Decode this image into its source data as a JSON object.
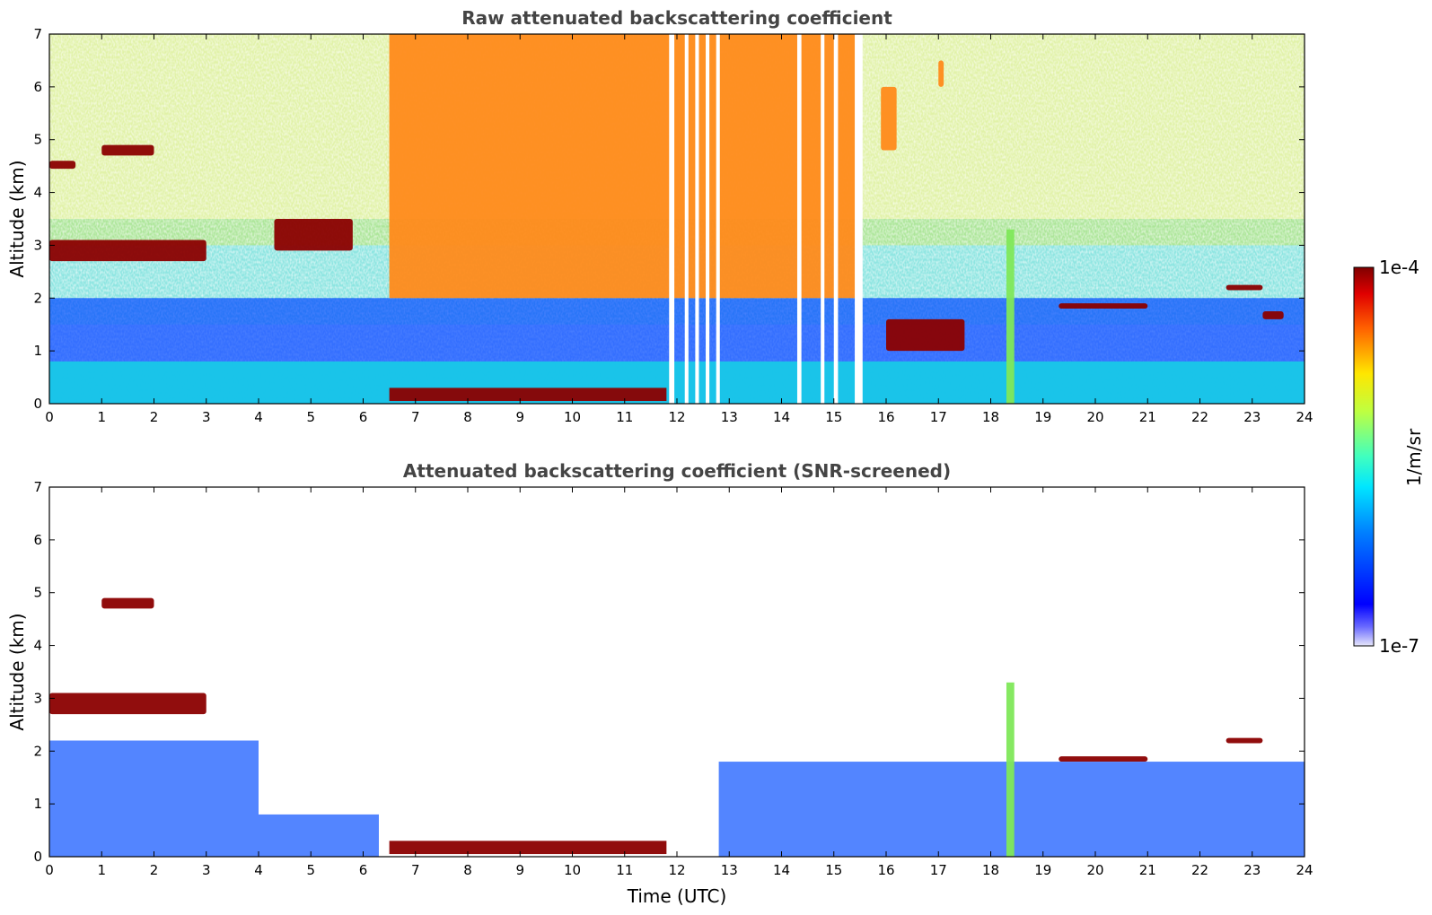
{
  "chart_data": [
    {
      "type": "heatmap",
      "title": "Raw attenuated backscattering coefficient",
      "xlabel": "",
      "ylabel": "Altitude (km)",
      "xlim": [
        0,
        24
      ],
      "ylim": [
        0,
        7
      ],
      "xticks": [
        "0",
        "1",
        "2",
        "3",
        "4",
        "5",
        "6",
        "7",
        "8",
        "9",
        "10",
        "11",
        "12",
        "13",
        "14",
        "15",
        "16",
        "17",
        "18",
        "19",
        "20",
        "21",
        "22",
        "23",
        "24"
      ],
      "yticks": [
        "0",
        "1",
        "2",
        "3",
        "4",
        "5",
        "6",
        "7"
      ],
      "data_gaps_hours": [
        [
          11.85,
          11.95
        ],
        [
          12.15,
          12.22
        ],
        [
          12.35,
          12.42
        ],
        [
          12.55,
          12.62
        ],
        [
          12.75,
          12.82
        ],
        [
          14.3,
          14.38
        ],
        [
          14.75,
          14.82
        ],
        [
          15.0,
          15.08
        ],
        [
          15.4,
          15.55
        ]
      ],
      "features": [
        {
          "name": "low noisy background",
          "t": [
            0,
            24
          ],
          "z": [
            0,
            2
          ],
          "level": "low"
        },
        {
          "name": "high noisy background",
          "t": [
            6.5,
            15.5
          ],
          "z": [
            2,
            7
          ],
          "level": "high"
        },
        {
          "name": "boundary layer",
          "t": [
            0,
            24
          ],
          "z": [
            0,
            0.8
          ],
          "level": "medium"
        },
        {
          "name": "surface layer",
          "t": [
            6.5,
            11.8
          ],
          "z": [
            0.05,
            0.3
          ],
          "level": "max"
        },
        {
          "name": "cloud",
          "t": [
            0.0,
            3.0
          ],
          "z": [
            2.7,
            3.1
          ],
          "level": "max"
        },
        {
          "name": "cloud",
          "t": [
            1.0,
            2.0
          ],
          "z": [
            4.7,
            4.9
          ],
          "level": "max"
        },
        {
          "name": "cloud",
          "t": [
            0.0,
            0.5
          ],
          "z": [
            4.45,
            4.6
          ],
          "level": "max"
        },
        {
          "name": "cloud",
          "t": [
            4.3,
            5.8
          ],
          "z": [
            2.9,
            3.5
          ],
          "level": "max"
        },
        {
          "name": "cloud",
          "t": [
            19.3,
            21.0
          ],
          "z": [
            1.8,
            1.9
          ],
          "level": "max"
        },
        {
          "name": "cloud",
          "t": [
            22.5,
            23.2
          ],
          "z": [
            2.15,
            2.25
          ],
          "level": "max"
        },
        {
          "name": "cloud",
          "t": [
            23.2,
            23.6
          ],
          "z": [
            1.6,
            1.75
          ],
          "level": "max"
        },
        {
          "name": "cloud",
          "t": [
            16.0,
            17.5
          ],
          "z": [
            1.0,
            1.6
          ],
          "level": "max"
        },
        {
          "name": "cloud",
          "t": [
            15.9,
            16.2
          ],
          "z": [
            4.8,
            6.0
          ],
          "level": "high"
        },
        {
          "name": "cloud",
          "t": [
            17.0,
            17.1
          ],
          "z": [
            6.0,
            6.5
          ],
          "level": "high"
        },
        {
          "name": "precipitation shaft",
          "t": [
            18.3,
            18.45
          ],
          "z": [
            0,
            3.3
          ],
          "level": "medium-high"
        }
      ]
    },
    {
      "type": "heatmap",
      "title": "Attenuated backscattering coefficient (SNR-screened)",
      "xlabel": "Time (UTC)",
      "ylabel": "Altitude (km)",
      "xlim": [
        0,
        24
      ],
      "ylim": [
        0,
        7
      ],
      "xticks": [
        "0",
        "1",
        "2",
        "3",
        "4",
        "5",
        "6",
        "7",
        "8",
        "9",
        "10",
        "11",
        "12",
        "13",
        "14",
        "15",
        "16",
        "17",
        "18",
        "19",
        "20",
        "21",
        "22",
        "23",
        "24"
      ],
      "yticks": [
        "0",
        "1",
        "2",
        "3",
        "4",
        "5",
        "6",
        "7"
      ],
      "features": [
        {
          "name": "aerosol layer",
          "t": [
            0,
            4.0
          ],
          "z": [
            0,
            2.2
          ],
          "level": "low"
        },
        {
          "name": "aerosol layer",
          "t": [
            4.0,
            6.3
          ],
          "z": [
            0,
            0.8
          ],
          "level": "low"
        },
        {
          "name": "surface layer",
          "t": [
            6.5,
            11.8
          ],
          "z": [
            0.05,
            0.3
          ],
          "level": "max"
        },
        {
          "name": "boundary layer",
          "t": [
            12.8,
            24
          ],
          "z": [
            0,
            1.8
          ],
          "level": "low"
        },
        {
          "name": "cloud",
          "t": [
            0.0,
            3.0
          ],
          "z": [
            2.7,
            3.1
          ],
          "level": "max"
        },
        {
          "name": "cloud",
          "t": [
            1.0,
            2.0
          ],
          "z": [
            4.7,
            4.9
          ],
          "level": "max"
        },
        {
          "name": "cloud",
          "t": [
            19.3,
            21.0
          ],
          "z": [
            1.8,
            1.9
          ],
          "level": "max"
        },
        {
          "name": "cloud",
          "t": [
            22.5,
            23.2
          ],
          "z": [
            2.15,
            2.25
          ],
          "level": "max"
        },
        {
          "name": "precipitation shaft",
          "t": [
            18.3,
            18.45
          ],
          "z": [
            0,
            3.3
          ],
          "level": "medium-high"
        }
      ]
    }
  ],
  "colorbar": {
    "label": "1/m/sr",
    "min_label": "1e-7",
    "max_label": "1e-4",
    "scale": "log",
    "colormap": "jet"
  }
}
